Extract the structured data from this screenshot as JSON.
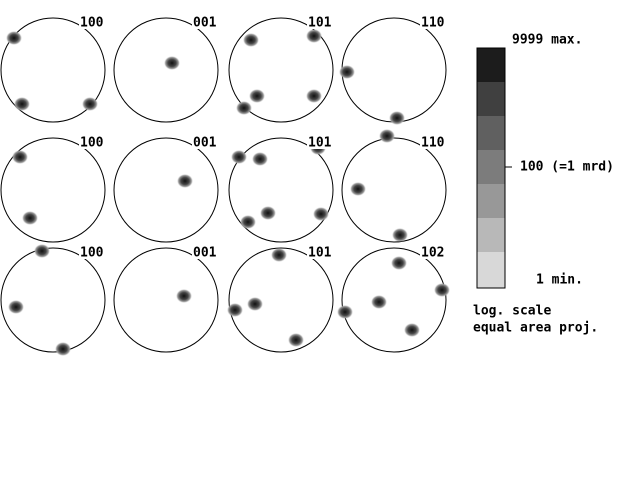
{
  "pole_figures": {
    "rows": [
      [
        "100",
        "001",
        "101",
        "110"
      ],
      [
        "100",
        "001",
        "101",
        "110"
      ],
      [
        "100",
        "001",
        "101",
        "102"
      ]
    ]
  },
  "legend": {
    "max": "9999 max.",
    "mid": "100 (=1 mrd)",
    "min": "1 min.",
    "scale": "log. scale",
    "projection": "equal area proj."
  }
}
